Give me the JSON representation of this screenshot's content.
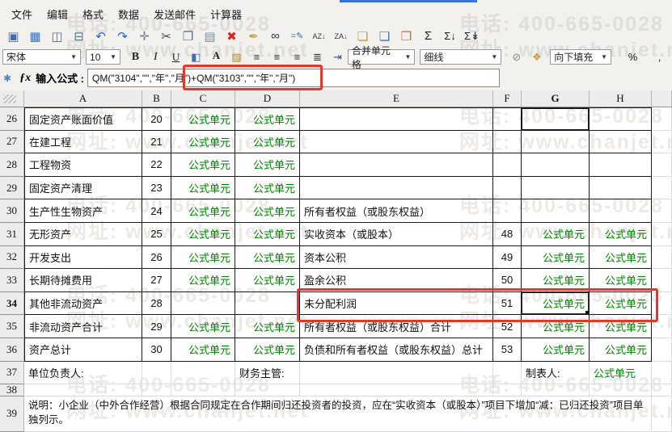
{
  "window": {
    "top_accent_color": "#3b74d9"
  },
  "menu": {
    "items": [
      "文件",
      "编辑",
      "格式",
      "数据",
      "发送邮件",
      "计算器"
    ]
  },
  "toolbar_main": {
    "icons": [
      {
        "name": "save-icon",
        "glyph": "▣",
        "color": "#3d6fb4"
      },
      {
        "name": "save-as-icon",
        "glyph": "▦",
        "color": "#3d6fb4"
      },
      {
        "name": "print-preview-icon",
        "glyph": "◫",
        "color": "#5a6b80"
      },
      {
        "name": "print-icon",
        "glyph": "⊟",
        "color": "#4a6fae"
      },
      {
        "name": "undo-icon",
        "glyph": "↶",
        "color": "#2f62c4"
      },
      {
        "name": "redo-icon",
        "glyph": "↷",
        "color": "#2f62c4"
      },
      {
        "name": "select-region-icon",
        "glyph": "✛",
        "color": "#6b7c94"
      },
      {
        "name": "cut-icon",
        "glyph": "✂",
        "color": "#444444"
      },
      {
        "name": "copy-icon",
        "glyph": "❐",
        "color": "#4a6fae"
      },
      {
        "name": "paste-checklist-icon",
        "glyph": "▤",
        "color": "#7a8aa0"
      },
      {
        "name": "delete-icon",
        "glyph": "✖",
        "color": "#d42b1e"
      },
      {
        "name": "format-painter-icon",
        "glyph": "✒",
        "color": "#c9a227"
      },
      {
        "name": "find-icon",
        "glyph": "∞",
        "color": "#333333"
      },
      {
        "name": "edit-formula-icon",
        "glyph": "=✎",
        "color": "#3a6aa6",
        "size": 11
      },
      {
        "name": "sort-asc-icon",
        "glyph": "AZ↓",
        "color": "#333333",
        "size": 9
      },
      {
        "name": "sort-desc-icon",
        "glyph": "ZA↓",
        "color": "#333333",
        "size": 9
      },
      {
        "name": "paste-name-icon",
        "glyph": "❏",
        "color": "#c89a3c"
      },
      {
        "name": "paste-format-icon",
        "glyph": "❏",
        "color": "#4a6fae"
      },
      {
        "name": "notes-icon",
        "glyph": "❒",
        "color": "#d06a2c"
      },
      {
        "name": "sum-icon",
        "glyph": "Σ",
        "color": "#222222"
      },
      {
        "name": "sum-column-icon",
        "glyph": "Σ↓",
        "color": "#222222",
        "size": 13
      },
      {
        "name": "sum-all-icon",
        "glyph": "Σ↡",
        "color": "#222222",
        "size": 13
      }
    ]
  },
  "toolbar_format": {
    "font_select": "宋体",
    "size_select": "10",
    "merge_select": "合并单元格",
    "line_select": "细线",
    "fill_select": "向下填充",
    "icons_text": [
      {
        "name": "bold-button",
        "glyph": "B",
        "cls": "glyph-b"
      },
      {
        "name": "italic-button",
        "glyph": "I",
        "cls": "glyph-i"
      },
      {
        "name": "underline-button",
        "glyph": "U",
        "cls": "glyph-u"
      },
      {
        "name": "fill-color-icon",
        "glyph": "◧",
        "color": "#3d6fb4"
      },
      {
        "name": "font-color-icon",
        "glyph": "A",
        "cls": "red-under"
      },
      {
        "name": "pattern-icon",
        "glyph": "▨",
        "color": "#b08a30"
      },
      {
        "name": "align-left-icon",
        "glyph": "≡",
        "color": "#333333"
      },
      {
        "name": "align-center-icon",
        "glyph": "≡",
        "color": "#333333"
      },
      {
        "name": "align-right-icon",
        "glyph": "≡",
        "color": "#333333"
      },
      {
        "name": "align-justify-icon",
        "glyph": "≣",
        "color": "#333333"
      },
      {
        "name": "wrap-text-icon",
        "glyph": "⇥",
        "color": "#33508a"
      }
    ],
    "icons_tools": [
      {
        "name": "eraser-icon",
        "glyph": "⊘",
        "color": "#888888"
      },
      {
        "name": "cell-properties-icon",
        "glyph": "❖",
        "color": "#c89a3c"
      }
    ],
    "icons_number": [
      {
        "name": "percent-style-button",
        "glyph": "%",
        "color": "#222222"
      },
      {
        "name": "comma-style-button",
        "glyph": ",",
        "color": "#222222"
      }
    ]
  },
  "formula_bar": {
    "cancel_glyph": "✱",
    "fx_glyph": "ƒx",
    "label": "输入公式 :",
    "value": "QM(\"3104\",\"\",\"年\",\"月\")+QM(\"3103\",\"\",\"年\",\"月\")"
  },
  "watermark": {
    "phone": "电话: 400-665-0028",
    "site": "网址: www.chanjet.net"
  },
  "annotation": {
    "color": "#e5382b"
  },
  "sheet": {
    "columns": [
      "A",
      "B",
      "C",
      "D",
      "E",
      "F",
      "G",
      "H"
    ],
    "selected_column": "G",
    "selected_row": "34",
    "rows": [
      {
        "num": "26",
        "type": "data",
        "a": "固定资产账面价值",
        "b": "20",
        "c": "公式单元",
        "d": "公式单元",
        "e": "",
        "f": "",
        "g": "",
        "h": "",
        "g_thick": true
      },
      {
        "num": "27",
        "type": "data",
        "a": "在建工程",
        "b": "21",
        "c": "公式单元",
        "d": "公式单元",
        "e": "",
        "f": "",
        "g": "",
        "h": ""
      },
      {
        "num": "28",
        "type": "data",
        "a": "工程物资",
        "b": "22",
        "c": "公式单元",
        "d": "公式单元",
        "e": "",
        "f": "",
        "g": "",
        "h": ""
      },
      {
        "num": "29",
        "type": "data",
        "a": "固定资产清理",
        "b": "23",
        "c": "公式单元",
        "d": "公式单元",
        "e": "",
        "f": "",
        "g": "",
        "h": ""
      },
      {
        "num": "30",
        "type": "data",
        "a": "生产性生物资产",
        "b": "24",
        "c": "公式单元",
        "d": "公式单元",
        "e": "所有者权益（或股东权益）",
        "f": "",
        "g": "",
        "h": ""
      },
      {
        "num": "31",
        "type": "data",
        "a": "无形资产",
        "b": "25",
        "c": "公式单元",
        "d": "公式单元",
        "e": "实收资本（或股本）",
        "f": "48",
        "g": "公式单元",
        "h": "公式单元"
      },
      {
        "num": "32",
        "type": "data",
        "a": "开发支出",
        "b": "26",
        "c": "公式单元",
        "d": "公式单元",
        "e": "资本公积",
        "f": "49",
        "g": "公式单元",
        "h": "公式单元"
      },
      {
        "num": "33",
        "type": "data",
        "a": "长期待摊费用",
        "b": "27",
        "c": "公式单元",
        "d": "公式单元",
        "e": "盈余公积",
        "f": "50",
        "g": "公式单元",
        "h": "公式单元"
      },
      {
        "num": "34",
        "type": "data",
        "a": "其他非流动资产",
        "b": "28",
        "c": "",
        "d": "",
        "e": "未分配利润",
        "f": "51",
        "g": "公式单元",
        "h": "公式单元",
        "selected": true
      },
      {
        "num": "35",
        "type": "data",
        "a": "非流动资产合计",
        "b": "29",
        "c": "公式单元",
        "d": "公式单元",
        "e": "所有者权益（或股东权益）合计",
        "f": "52",
        "g": "公式单元",
        "h": "公式单元"
      },
      {
        "num": "36",
        "type": "data",
        "a": "资产总计",
        "b": "30",
        "c": "公式单元",
        "d": "公式单元",
        "e": "负债和所有者权益（或股东权益）总计",
        "f": "53",
        "g": "公式单元",
        "h": "公式单元"
      },
      {
        "num": "37",
        "type": "labels",
        "a": "单位负责人:",
        "b": "",
        "c": "",
        "d": "财务主管:",
        "e": "",
        "f": "",
        "g": "制表人:",
        "h": "公式单元"
      },
      {
        "num": "38",
        "type": "empty"
      },
      {
        "num": "39",
        "type": "note",
        "text": "说明：小企业（中外合作经营）根据合同规定在合作期间归还投资者的投资，应在“实收资本（或股本）”项目下增加“减：已归还投资”项目单独列示。"
      }
    ]
  }
}
